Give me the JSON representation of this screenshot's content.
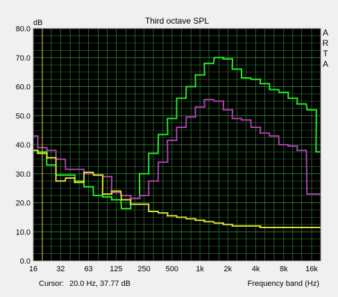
{
  "chart_data": {
    "type": "line",
    "title": "Third octave SPL",
    "ylabel": "dB",
    "xlabel": "Frequency band (Hz)",
    "brand": "ARTA",
    "cursor_label": "Cursor:",
    "cursor_value": "20.0 Hz, 37.77 dB",
    "ylim": [
      0,
      80
    ],
    "yticks": [
      "0.0",
      "10.0",
      "20.0",
      "30.0",
      "40.0",
      "50.0",
      "60.0",
      "70.0",
      "80.0"
    ],
    "xticks": [
      "16",
      "32",
      "63",
      "125",
      "250",
      "500",
      "1k",
      "2k",
      "4k",
      "8k",
      "16k"
    ],
    "x_log_range": [
      16,
      20000
    ],
    "grid": true,
    "colors": {
      "background": "#000000",
      "grid": "#2e7d32",
      "frame": "#808080"
    },
    "series": [
      {
        "color": "#22ee22",
        "bands": [
          16,
          20,
          25,
          31.5,
          40,
          50,
          63,
          80,
          100,
          125,
          160,
          200,
          250,
          315,
          400,
          500,
          630,
          800,
          1000,
          1250,
          1600,
          2000,
          2500,
          3150,
          4000,
          5000,
          6300,
          8000,
          10000,
          12500,
          16000,
          20000
        ],
        "values": [
          38,
          37.5,
          33,
          29.5,
          29.5,
          27.5,
          25.5,
          22.5,
          22,
          21,
          18,
          21.5,
          30,
          37,
          43.5,
          49,
          56,
          60,
          64,
          68,
          70,
          69.5,
          66,
          63,
          62.5,
          61,
          59,
          58,
          56,
          54,
          52,
          37.5
        ]
      },
      {
        "color": "#b040b0",
        "bands": [
          16,
          20,
          25,
          31.5,
          40,
          50,
          63,
          80,
          100,
          125,
          160,
          200,
          250,
          315,
          400,
          500,
          630,
          800,
          1000,
          1250,
          1600,
          2000,
          2500,
          3150,
          4000,
          5000,
          6300,
          8000,
          10000,
          12500,
          16000,
          20000
        ],
        "values": [
          43,
          39,
          38,
          35,
          31.5,
          31.5,
          30,
          29.5,
          29,
          23.5,
          22.5,
          21.5,
          22.5,
          27.5,
          34,
          41.5,
          46,
          49.5,
          53,
          55.5,
          55,
          52,
          49,
          48.5,
          46,
          44,
          43,
          40,
          39.5,
          38,
          23,
          23
        ]
      },
      {
        "color": "#e0e030",
        "bands": [
          16,
          20,
          25,
          31.5,
          40,
          50,
          63,
          80,
          100,
          125,
          160,
          200,
          250,
          315,
          400,
          500,
          630,
          800,
          1000,
          1250,
          1600,
          2000,
          2500,
          3150,
          4000,
          5000,
          6300,
          8000,
          10000,
          12500,
          16000,
          20000
        ],
        "values": [
          38,
          37,
          35.5,
          27.5,
          28.5,
          27,
          30.5,
          29.5,
          23,
          24,
          21,
          19.5,
          19.5,
          17,
          16.5,
          15.5,
          15,
          14.5,
          14,
          13.5,
          13,
          12.5,
          12,
          12,
          12,
          11.5,
          11.5,
          11.5,
          11.5,
          11.5,
          11.5,
          11.5
        ]
      }
    ]
  }
}
